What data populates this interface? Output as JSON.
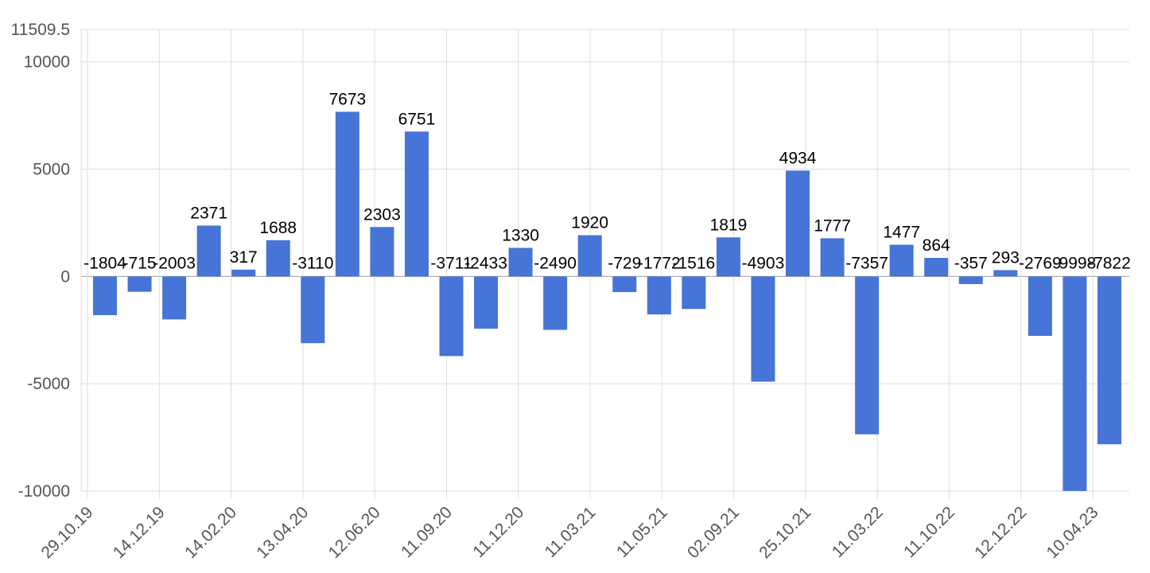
{
  "chart_data": {
    "type": "bar",
    "title": "",
    "xlabel": "",
    "ylabel": "",
    "ylim": [
      -10000,
      11509.5
    ],
    "y_ticks": [
      "11509.5",
      "10000",
      "5000",
      "0",
      "-5000",
      "-10000"
    ],
    "y_tick_values": [
      11509.5,
      10000,
      5000,
      0,
      -5000,
      -10000
    ],
    "x_tick_labels": [
      "29.10.19",
      "14.12.19",
      "14.02.20",
      "13.04.20",
      "12.06.20",
      "11.09.20",
      "11.12.20",
      "11.03.21",
      "11.05.21",
      "02.09.21",
      "25.10.21",
      "11.03.22",
      "11.10.22",
      "12.12.22",
      "10.04.23"
    ],
    "values": [
      -1804,
      -715,
      -2003,
      2371,
      317,
      1688,
      -3110,
      7673,
      2303,
      6751,
      -3711,
      -2433,
      1330,
      -2490,
      1920,
      -729,
      -1772,
      -1516,
      1819,
      -4903,
      4934,
      1777,
      -7357,
      1477,
      864,
      -357,
      293,
      -2769,
      -9998,
      -7822
    ],
    "data_labels": [
      "-1804",
      "-715",
      "-2003",
      "2371",
      "317",
      "1688",
      "-3110",
      "7673",
      "2303",
      "6751",
      "-3711",
      "-2433",
      "1330",
      "-2490",
      "1920",
      "-729",
      "-1772",
      "-1516",
      "1819",
      "-4903",
      "4934",
      "1777",
      "-7357",
      "1477",
      "864",
      "-357",
      "293",
      "-2769",
      "-9998",
      "-7822"
    ],
    "grid": true,
    "legend": "none",
    "bar_color": "#4674d7"
  }
}
